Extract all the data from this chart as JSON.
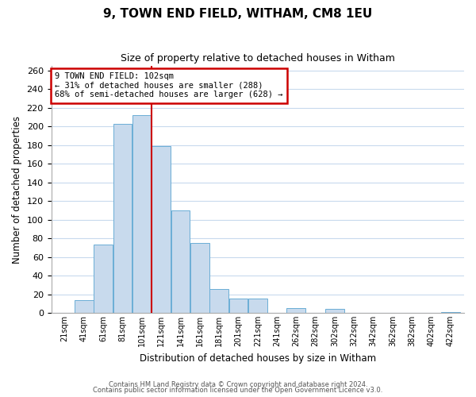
{
  "title": "9, TOWN END FIELD, WITHAM, CM8 1EU",
  "subtitle": "Size of property relative to detached houses in Witham",
  "xlabel": "Distribution of detached houses by size in Witham",
  "ylabel": "Number of detached properties",
  "bar_color": "#c8daed",
  "bar_edge_color": "#6baed6",
  "background_color": "#ffffff",
  "grid_color": "#c8daed",
  "categories": [
    "21sqm",
    "41sqm",
    "61sqm",
    "81sqm",
    "101sqm",
    "121sqm",
    "141sqm",
    "161sqm",
    "181sqm",
    "201sqm",
    "221sqm",
    "241sqm",
    "262sqm",
    "282sqm",
    "302sqm",
    "322sqm",
    "342sqm",
    "362sqm",
    "382sqm",
    "402sqm",
    "422sqm"
  ],
  "values": [
    0,
    14,
    73,
    203,
    212,
    179,
    110,
    75,
    26,
    15,
    15,
    0,
    5,
    0,
    4,
    0,
    0,
    0,
    0,
    0,
    1
  ],
  "ylim": [
    0,
    265
  ],
  "yticks": [
    0,
    20,
    40,
    60,
    80,
    100,
    120,
    140,
    160,
    180,
    200,
    220,
    240,
    260
  ],
  "property_line_bin_index": 5,
  "annotation_title": "9 TOWN END FIELD: 102sqm",
  "annotation_line1": "← 31% of detached houses are smaller (288)",
  "annotation_line2": "68% of semi-detached houses are larger (628) →",
  "annotation_box_color": "#cc0000",
  "footer1": "Contains HM Land Registry data © Crown copyright and database right 2024.",
  "footer2": "Contains public sector information licensed under the Open Government Licence v3.0."
}
